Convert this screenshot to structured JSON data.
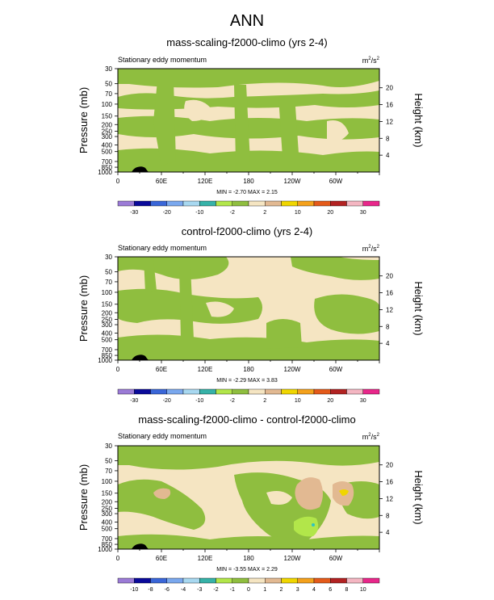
{
  "main_title": "ANN",
  "colors": {
    "cream": "#f5e5c2",
    "green": "#8fbe3f",
    "lightgreen": "#b2e64a",
    "tan": "#e2b992",
    "yellow": "#f0d600",
    "cyan": "#30c4c0",
    "text": "#000000"
  },
  "panels": [
    {
      "title": "mass-scaling-f2000-climo (yrs 2-4)",
      "left_label": "Stationary eddy momentum",
      "units_base": "m",
      "units_sup1": "2",
      "units_mid": "/s",
      "units_sup2": "2",
      "min_label": "MIN =",
      "min_value": "-2.70",
      "max_label": "MAX =",
      "max_value": "2.15",
      "colorbar_labels": [
        "-30",
        "-20",
        "-10",
        "-2",
        "2",
        "10",
        "20",
        "30"
      ]
    },
    {
      "title": "control-f2000-climo (yrs 2-4)",
      "left_label": "Stationary eddy momentum",
      "units_base": "m",
      "units_sup1": "2",
      "units_mid": "/s",
      "units_sup2": "2",
      "min_label": "MIN =",
      "min_value": "-2.29",
      "max_label": "MAX =",
      "max_value": "3.83",
      "colorbar_labels": [
        "-30",
        "-20",
        "-10",
        "-2",
        "2",
        "10",
        "20",
        "30"
      ]
    },
    {
      "title": "mass-scaling-f2000-climo - control-f2000-climo",
      "left_label": "Stationary eddy momentum",
      "units_base": "m",
      "units_sup1": "2",
      "units_mid": "/s",
      "units_sup2": "2",
      "min_label": "MIN =",
      "min_value": "-3.55",
      "max_label": "MAX =",
      "max_value": "2.29",
      "colorbar_labels": [
        "-10",
        "-8",
        "-6",
        "-4",
        "-3",
        "-2",
        "-1",
        "0",
        "1",
        "2",
        "3",
        "4",
        "6",
        "8",
        "10"
      ]
    }
  ],
  "chart_data": [
    {
      "type": "heatmap",
      "title": "mass-scaling-f2000-climo (yrs 2-4)",
      "variable": "Stationary eddy momentum",
      "units": "m2/s2",
      "x_ticks": [
        "0",
        "60E",
        "120E",
        "180",
        "120W",
        "60W"
      ],
      "x_tick_values": [
        0,
        60,
        120,
        180,
        240,
        300
      ],
      "xlim": [
        0,
        360
      ],
      "ylabel": "Pressure (mb)",
      "y_ticks": [
        "30",
        "50",
        "70",
        "100",
        "150",
        "200",
        "250",
        "300",
        "400",
        "500",
        "700",
        "850",
        "1000"
      ],
      "y_tick_values": [
        30,
        50,
        70,
        100,
        150,
        200,
        250,
        300,
        400,
        500,
        700,
        850,
        1000
      ],
      "ylim": [
        1000,
        30
      ],
      "y2label": "Height (km)",
      "y2_ticks": [
        "4",
        "8",
        "12",
        "16",
        "20"
      ],
      "y2_tick_values": [
        4,
        8,
        12,
        16,
        20
      ],
      "min": -2.7,
      "max": 2.15,
      "contour_levels": [
        -30,
        -20,
        -10,
        -2,
        2,
        10,
        20,
        30
      ],
      "dominant_bins": [
        {
          "range": "-10 to -2",
          "color": "#8fbe3f"
        },
        {
          "range": "-2 to 2",
          "color": "#f5e5c2"
        }
      ]
    },
    {
      "type": "heatmap",
      "title": "control-f2000-climo (yrs 2-4)",
      "variable": "Stationary eddy momentum",
      "units": "m2/s2",
      "x_ticks": [
        "0",
        "60E",
        "120E",
        "180",
        "120W",
        "60W"
      ],
      "x_tick_values": [
        0,
        60,
        120,
        180,
        240,
        300
      ],
      "xlim": [
        0,
        360
      ],
      "ylabel": "Pressure (mb)",
      "y_ticks": [
        "30",
        "50",
        "70",
        "100",
        "150",
        "200",
        "250",
        "300",
        "400",
        "500",
        "700",
        "850",
        "1000"
      ],
      "y_tick_values": [
        30,
        50,
        70,
        100,
        150,
        200,
        250,
        300,
        400,
        500,
        700,
        850,
        1000
      ],
      "ylim": [
        1000,
        30
      ],
      "y2label": "Height (km)",
      "y2_ticks": [
        "4",
        "8",
        "12",
        "16",
        "20"
      ],
      "y2_tick_values": [
        4,
        8,
        12,
        16,
        20
      ],
      "min": -2.29,
      "max": 3.83,
      "contour_levels": [
        -30,
        -20,
        -10,
        -2,
        2,
        10,
        20,
        30
      ],
      "dominant_bins": [
        {
          "range": "-10 to -2",
          "color": "#8fbe3f"
        },
        {
          "range": "-2 to 2",
          "color": "#f5e5c2"
        }
      ]
    },
    {
      "type": "heatmap",
      "title": "mass-scaling-f2000-climo - control-f2000-climo",
      "variable": "Stationary eddy momentum",
      "units": "m2/s2",
      "x_ticks": [
        "0",
        "60E",
        "120E",
        "180",
        "120W",
        "60W"
      ],
      "x_tick_values": [
        0,
        60,
        120,
        180,
        240,
        300
      ],
      "xlim": [
        0,
        360
      ],
      "ylabel": "Pressure (mb)",
      "y_ticks": [
        "30",
        "50",
        "70",
        "100",
        "150",
        "200",
        "250",
        "300",
        "400",
        "500",
        "700",
        "850",
        "1000"
      ],
      "y_tick_values": [
        30,
        50,
        70,
        100,
        150,
        200,
        250,
        300,
        400,
        500,
        700,
        850,
        1000
      ],
      "ylim": [
        1000,
        30
      ],
      "y2label": "Height (km)",
      "y2_ticks": [
        "4",
        "8",
        "12",
        "16",
        "20"
      ],
      "y2_tick_values": [
        4,
        8,
        12,
        16,
        20
      ],
      "min": -3.55,
      "max": 2.29,
      "contour_levels": [
        -10,
        -8,
        -6,
        -4,
        -3,
        -2,
        -1,
        0,
        1,
        2,
        3,
        4,
        6,
        8,
        10
      ],
      "dominant_bins": [
        {
          "range": "-1 to 0",
          "color": "#8fbe3f"
        },
        {
          "range": "0 to 1",
          "color": "#f5e5c2"
        },
        {
          "range": "1 to 2",
          "color": "#e2b992"
        },
        {
          "range": "-2 to -1",
          "color": "#b2e64a"
        },
        {
          "range": "2 to 3",
          "color": "#f0d600"
        }
      ]
    }
  ],
  "colorbars": [
    {
      "labels": [
        "-30",
        "-20",
        "-10",
        "-2",
        "2",
        "10",
        "20",
        "30"
      ],
      "colors": [
        "#9b7bd6",
        "#0a0a9a",
        "#3a66d8",
        "#7aa8ee",
        "#a8d8f0",
        "#36b2a8",
        "#b2e64a",
        "#8fbe3f",
        "#f5e5c2",
        "#e2b992",
        "#f0d600",
        "#f4a11c",
        "#e45a1a",
        "#b22222",
        "#f4b6c2",
        "#e8278a"
      ]
    },
    {
      "labels": [
        "-30",
        "-20",
        "-10",
        "-2",
        "2",
        "10",
        "20",
        "30"
      ],
      "colors": [
        "#9b7bd6",
        "#0a0a9a",
        "#3a66d8",
        "#7aa8ee",
        "#a8d8f0",
        "#36b2a8",
        "#b2e64a",
        "#8fbe3f",
        "#f5e5c2",
        "#e2b992",
        "#f0d600",
        "#f4a11c",
        "#e45a1a",
        "#b22222",
        "#f4b6c2",
        "#e8278a"
      ]
    },
    {
      "labels": [
        "-10",
        "-8",
        "-6",
        "-4",
        "-3",
        "-2",
        "-1",
        "0",
        "1",
        "2",
        "3",
        "4",
        "6",
        "8",
        "10"
      ],
      "colors": [
        "#9b7bd6",
        "#0a0a9a",
        "#3a66d8",
        "#7aa8ee",
        "#a8d8f0",
        "#36b2a8",
        "#b2e64a",
        "#8fbe3f",
        "#f5e5c2",
        "#e2b992",
        "#f0d600",
        "#f4a11c",
        "#e45a1a",
        "#b22222",
        "#f4b6c2",
        "#e8278a"
      ]
    }
  ]
}
